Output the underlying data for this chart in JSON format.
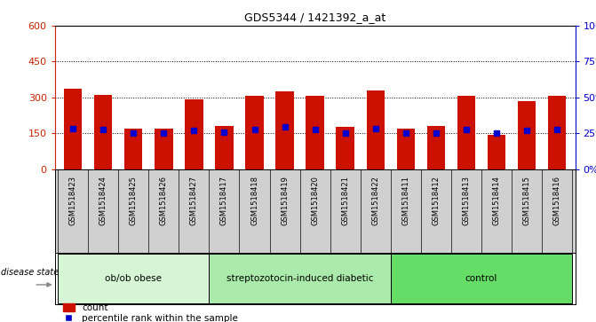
{
  "title": "GDS5344 / 1421392_a_at",
  "samples": [
    "GSM1518423",
    "GSM1518424",
    "GSM1518425",
    "GSM1518426",
    "GSM1518427",
    "GSM1518417",
    "GSM1518418",
    "GSM1518419",
    "GSM1518420",
    "GSM1518421",
    "GSM1518422",
    "GSM1518411",
    "GSM1518412",
    "GSM1518413",
    "GSM1518414",
    "GSM1518415",
    "GSM1518416"
  ],
  "counts": [
    335,
    310,
    170,
    170,
    290,
    180,
    305,
    325,
    305,
    178,
    330,
    170,
    180,
    305,
    143,
    285,
    307
  ],
  "percentile_ranks": [
    170,
    165,
    150,
    152,
    160,
    155,
    165,
    178,
    165,
    152,
    168,
    152,
    152,
    165,
    150,
    163,
    165
  ],
  "groups": [
    {
      "label": "ob/ob obese",
      "start": 0,
      "end": 5,
      "color": "#d5f5d5"
    },
    {
      "label": "streptozotocin-induced diabetic",
      "start": 5,
      "end": 11,
      "color": "#aaeaaa"
    },
    {
      "label": "control",
      "start": 11,
      "end": 17,
      "color": "#66dd66"
    }
  ],
  "ylim_left": [
    0,
    600
  ],
  "ylim_right": [
    0,
    100
  ],
  "yticks_left": [
    0,
    150,
    300,
    450,
    600
  ],
  "yticks_right": [
    0,
    25,
    50,
    75,
    100
  ],
  "bar_color": "#cc1100",
  "dot_color": "#0000cc",
  "left_axis_color": "#cc2200",
  "right_axis_color": "#0000cc",
  "xlabel_bg_color": "#d0d0d0",
  "legend": [
    "count",
    "percentile rank within the sample"
  ],
  "fig_width": 6.71,
  "fig_height": 3.63,
  "dpi": 100
}
